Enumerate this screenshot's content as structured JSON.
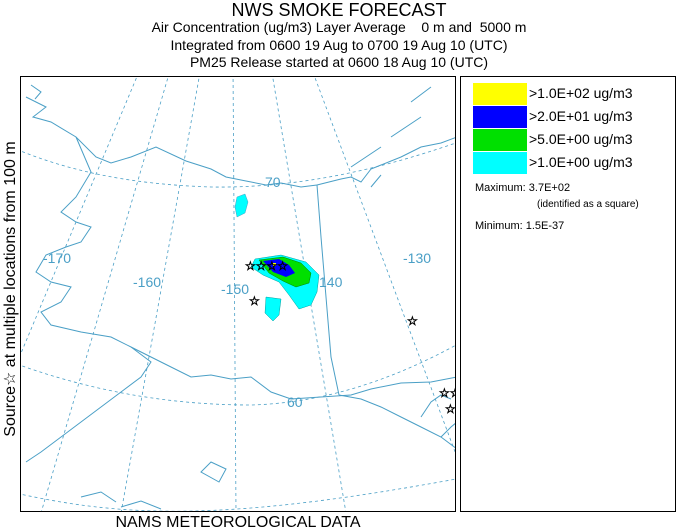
{
  "header": {
    "title": "NWS SMOKE FORECAST",
    "line1": "Air Concentration (ug/m3) Layer Average    0 m and  5000 m",
    "line2": "Integrated from 0600 19 Aug to 0700 19 Aug 10 (UTC)",
    "line3": "PM25 Release started at 0600 18 Aug 10 (UTC)"
  },
  "side_label": "Source☆ at multiple locations from 100 m",
  "footer": "NAMS METEOROLOGICAL DATA",
  "map": {
    "graticule": {
      "longitudes": [
        "-170",
        "-160",
        "-150",
        "140",
        "-130"
      ],
      "latitudes": [
        "70",
        "60"
      ]
    },
    "colors": {
      "coast": "#4a9fc6",
      "graticule": "#4a9fc6",
      "label": "#4a9fc6"
    }
  },
  "legend": {
    "items": [
      {
        "label": ">1.0E+02 ug/m3",
        "color": "#ffff00"
      },
      {
        "label": ">2.0E+01 ug/m3",
        "color": "#0000ff"
      },
      {
        "label": ">5.0E+00 ug/m3",
        "color": "#00e000"
      },
      {
        "label": ">1.0E+00 ug/m3",
        "color": "#00ffff"
      }
    ],
    "maximum": "Maximum: 3.7E+02",
    "maximum_note": "(identified as a square)",
    "minimum": "Minimum: 1.5E-37"
  }
}
